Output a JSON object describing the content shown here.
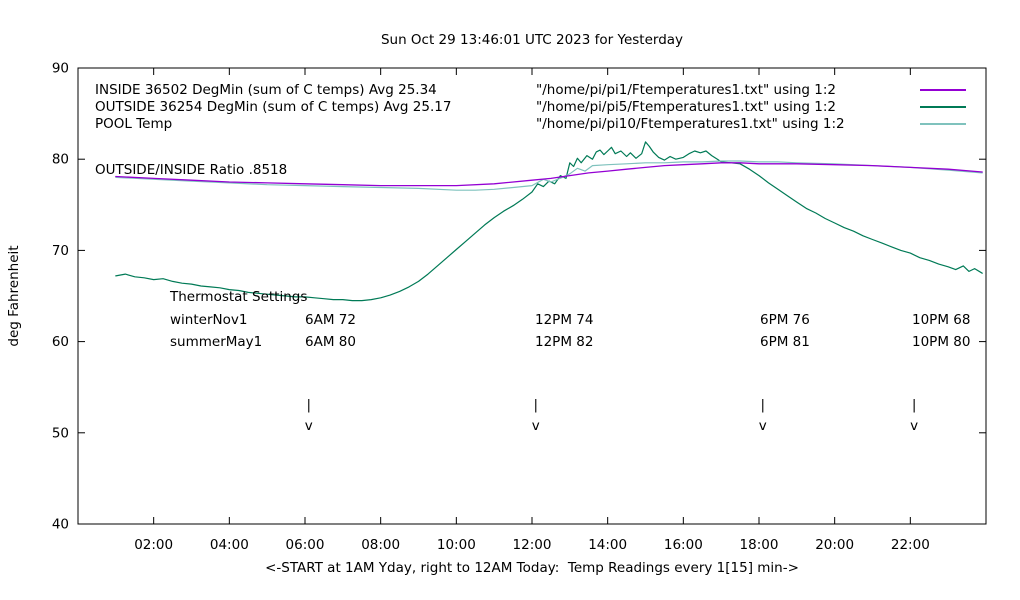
{
  "title": "Sun Oct 29 13:46:01 UTC 2023 for Yesterday",
  "y_axis_label": "deg Fahrenheit",
  "x_axis_label": "<-START at 1AM Yday, right to 12AM Today:  Temp Readings every 1[15] min->",
  "ratio_label": "OUTSIDE/INSIDE Ratio .8518",
  "legend": {
    "entries": [
      {
        "label": "INSIDE 36502 DegMin (sum of C temps) Avg 25.34",
        "file": "\"/home/pi/pi1/Ftemperatures1.txt\" using 1:2"
      },
      {
        "label": "OUTSIDE 36254 DegMin (sum of C temps) Avg 25.17",
        "file": "\"/home/pi/pi5/Ftemperatures1.txt\" using 1:2"
      },
      {
        "label": "POOL Temp",
        "file": "\"/home/pi/pi10/Ftemperatures1.txt\" using 1:2"
      }
    ]
  },
  "thermostat": {
    "heading": "Thermostat Settings",
    "rows": [
      {
        "name": "winterNov1",
        "settings": [
          "6AM 72",
          "12PM 74",
          "6PM 76",
          "10PM 68"
        ]
      },
      {
        "name": "summerMay1",
        "settings": [
          "6AM 80",
          "12PM 82",
          "6PM 81",
          "10PM 80"
        ]
      }
    ]
  },
  "markers": {
    "hours": [
      6.1,
      12.1,
      18.1,
      22.1
    ],
    "top_glyph": "|",
    "top_f": 52.6,
    "bottom_glyph": "v",
    "bottom_f": 50.3
  },
  "chart_data": {
    "type": "line",
    "title": "Sun Oct 29 13:46:01 UTC 2023 for Yesterday",
    "xlabel": "<-START at 1AM Yday, right to 12AM Today:  Temp Readings every 1[15] min->",
    "ylabel": "deg Fahrenheit",
    "x_range": [
      0,
      24
    ],
    "y_range": [
      40,
      90
    ],
    "x_ticks": [
      {
        "value": 2,
        "label": "02:00"
      },
      {
        "value": 4,
        "label": "04:00"
      },
      {
        "value": 6,
        "label": "06:00"
      },
      {
        "value": 8,
        "label": "08:00"
      },
      {
        "value": 10,
        "label": "10:00"
      },
      {
        "value": 12,
        "label": "12:00"
      },
      {
        "value": 14,
        "label": "14:00"
      },
      {
        "value": 16,
        "label": "16:00"
      },
      {
        "value": 18,
        "label": "18:00"
      },
      {
        "value": 20,
        "label": "20:00"
      },
      {
        "value": 22,
        "label": "22:00"
      }
    ],
    "y_ticks": [
      40,
      50,
      60,
      70,
      80,
      90
    ],
    "series": [
      {
        "name": "OUTSIDE",
        "color": "#007a56",
        "width": 1.2,
        "points": [
          [
            1.0,
            67.2
          ],
          [
            1.25,
            67.4
          ],
          [
            1.5,
            67.1
          ],
          [
            1.75,
            67.0
          ],
          [
            2.0,
            66.8
          ],
          [
            2.25,
            66.9
          ],
          [
            2.5,
            66.6
          ],
          [
            2.75,
            66.4
          ],
          [
            3.0,
            66.3
          ],
          [
            3.25,
            66.1
          ],
          [
            3.5,
            66.0
          ],
          [
            3.75,
            65.9
          ],
          [
            4.0,
            65.7
          ],
          [
            4.25,
            65.6
          ],
          [
            4.5,
            65.4
          ],
          [
            4.75,
            65.3
          ],
          [
            5.0,
            65.2
          ],
          [
            5.25,
            65.1
          ],
          [
            5.5,
            65.0
          ],
          [
            5.75,
            64.9
          ],
          [
            6.0,
            64.9
          ],
          [
            6.25,
            64.8
          ],
          [
            6.5,
            64.7
          ],
          [
            6.75,
            64.6
          ],
          [
            7.0,
            64.6
          ],
          [
            7.25,
            64.5
          ],
          [
            7.5,
            64.5
          ],
          [
            7.75,
            64.6
          ],
          [
            8.0,
            64.8
          ],
          [
            8.25,
            65.1
          ],
          [
            8.5,
            65.5
          ],
          [
            8.75,
            66.0
          ],
          [
            9.0,
            66.6
          ],
          [
            9.25,
            67.4
          ],
          [
            9.5,
            68.3
          ],
          [
            9.75,
            69.2
          ],
          [
            10.0,
            70.1
          ],
          [
            10.25,
            71.0
          ],
          [
            10.5,
            71.9
          ],
          [
            10.75,
            72.8
          ],
          [
            11.0,
            73.6
          ],
          [
            11.25,
            74.3
          ],
          [
            11.5,
            74.9
          ],
          [
            11.75,
            75.6
          ],
          [
            12.0,
            76.4
          ],
          [
            12.15,
            77.3
          ],
          [
            12.3,
            77.0
          ],
          [
            12.45,
            77.6
          ],
          [
            12.6,
            77.3
          ],
          [
            12.75,
            78.2
          ],
          [
            12.9,
            77.9
          ],
          [
            13.0,
            79.6
          ],
          [
            13.1,
            79.2
          ],
          [
            13.2,
            80.1
          ],
          [
            13.3,
            79.6
          ],
          [
            13.45,
            80.4
          ],
          [
            13.6,
            80.0
          ],
          [
            13.7,
            80.8
          ],
          [
            13.8,
            81.0
          ],
          [
            13.9,
            80.5
          ],
          [
            14.0,
            80.9
          ],
          [
            14.1,
            81.3
          ],
          [
            14.2,
            80.6
          ],
          [
            14.35,
            80.9
          ],
          [
            14.5,
            80.3
          ],
          [
            14.6,
            80.7
          ],
          [
            14.75,
            80.1
          ],
          [
            14.9,
            80.6
          ],
          [
            15.0,
            81.9
          ],
          [
            15.1,
            81.4
          ],
          [
            15.2,
            80.8
          ],
          [
            15.35,
            80.2
          ],
          [
            15.5,
            79.9
          ],
          [
            15.65,
            80.3
          ],
          [
            15.8,
            80.0
          ],
          [
            16.0,
            80.2
          ],
          [
            16.15,
            80.6
          ],
          [
            16.3,
            80.9
          ],
          [
            16.45,
            80.7
          ],
          [
            16.6,
            80.9
          ],
          [
            16.75,
            80.4
          ],
          [
            16.9,
            80.0
          ],
          [
            17.0,
            79.7
          ],
          [
            17.25,
            79.6
          ],
          [
            17.5,
            79.5
          ],
          [
            17.75,
            78.9
          ],
          [
            18.0,
            78.2
          ],
          [
            18.25,
            77.4
          ],
          [
            18.5,
            76.7
          ],
          [
            18.75,
            76.0
          ],
          [
            19.0,
            75.3
          ],
          [
            19.25,
            74.6
          ],
          [
            19.5,
            74.1
          ],
          [
            19.75,
            73.5
          ],
          [
            20.0,
            73.0
          ],
          [
            20.25,
            72.5
          ],
          [
            20.5,
            72.1
          ],
          [
            20.75,
            71.6
          ],
          [
            21.0,
            71.2
          ],
          [
            21.25,
            70.8
          ],
          [
            21.5,
            70.4
          ],
          [
            21.75,
            70.0
          ],
          [
            22.0,
            69.7
          ],
          [
            22.25,
            69.2
          ],
          [
            22.5,
            68.9
          ],
          [
            22.75,
            68.5
          ],
          [
            23.0,
            68.2
          ],
          [
            23.2,
            67.9
          ],
          [
            23.4,
            68.3
          ],
          [
            23.55,
            67.7
          ],
          [
            23.7,
            68.0
          ],
          [
            23.9,
            67.5
          ]
        ]
      },
      {
        "name": "POOL",
        "color": "#7fc2bd",
        "width": 1.2,
        "points": [
          [
            1.0,
            78.0
          ],
          [
            2,
            77.8
          ],
          [
            3,
            77.6
          ],
          [
            4,
            77.4
          ],
          [
            5,
            77.2
          ],
          [
            6,
            77.1
          ],
          [
            7,
            77.0
          ],
          [
            8,
            76.9
          ],
          [
            9,
            76.8
          ],
          [
            10,
            76.6
          ],
          [
            10.5,
            76.6
          ],
          [
            11,
            76.7
          ],
          [
            11.5,
            76.9
          ],
          [
            12,
            77.1
          ],
          [
            12.3,
            77.8
          ],
          [
            12.5,
            77.5
          ],
          [
            12.8,
            78.0
          ],
          [
            13,
            78.4
          ],
          [
            13.2,
            79.0
          ],
          [
            13.4,
            78.7
          ],
          [
            13.6,
            79.3
          ],
          [
            14,
            79.4
          ],
          [
            14.5,
            79.5
          ],
          [
            15,
            79.6
          ],
          [
            15.5,
            79.6
          ],
          [
            16,
            79.7
          ],
          [
            16.5,
            79.7
          ],
          [
            17,
            79.8
          ],
          [
            17.5,
            79.8
          ],
          [
            18,
            79.7
          ],
          [
            18.5,
            79.7
          ],
          [
            19,
            79.6
          ],
          [
            20,
            79.5
          ],
          [
            21,
            79.3
          ],
          [
            22,
            79.1
          ],
          [
            23,
            78.8
          ],
          [
            23.9,
            78.5
          ]
        ]
      },
      {
        "name": "INSIDE",
        "color": "#9400d3",
        "width": 1.3,
        "points": [
          [
            1.0,
            78.1
          ],
          [
            2,
            77.9
          ],
          [
            3,
            77.7
          ],
          [
            4,
            77.5
          ],
          [
            5,
            77.4
          ],
          [
            6,
            77.3
          ],
          [
            7,
            77.2
          ],
          [
            8,
            77.1
          ],
          [
            9,
            77.1
          ],
          [
            10,
            77.1
          ],
          [
            11,
            77.3
          ],
          [
            12,
            77.7
          ],
          [
            12.5,
            77.9
          ],
          [
            13,
            78.2
          ],
          [
            13.5,
            78.5
          ],
          [
            14,
            78.7
          ],
          [
            14.5,
            78.9
          ],
          [
            15,
            79.1
          ],
          [
            15.5,
            79.3
          ],
          [
            16,
            79.4
          ],
          [
            16.5,
            79.5
          ],
          [
            17,
            79.6
          ],
          [
            17.5,
            79.6
          ],
          [
            18,
            79.5
          ],
          [
            19,
            79.5
          ],
          [
            20,
            79.4
          ],
          [
            21,
            79.3
          ],
          [
            22,
            79.1
          ],
          [
            23,
            78.9
          ],
          [
            23.9,
            78.6
          ]
        ]
      }
    ]
  }
}
